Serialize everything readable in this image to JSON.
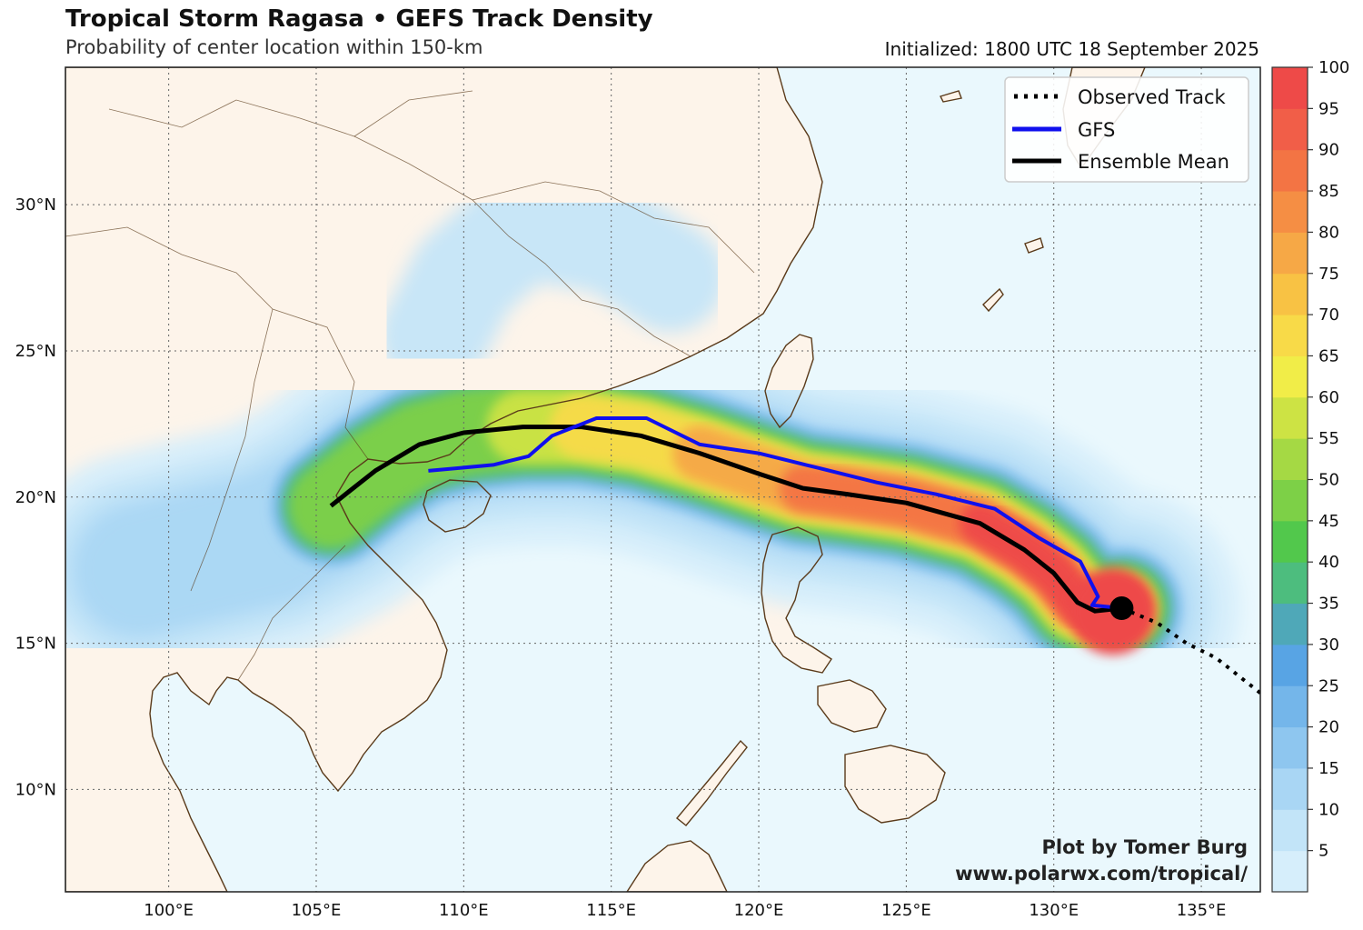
{
  "header": {
    "title": "Tropical Storm Ragasa • GEFS Track Density",
    "subtitle": "Probability of center location within 150-km",
    "initialized": "Initialized: 1800 UTC 18 September 2025"
  },
  "map": {
    "lon_range": [
      96.5,
      137.0
    ],
    "lat_range": [
      6.5,
      34.7
    ],
    "lon_ticks": [
      {
        "value": 100,
        "label": "100°E"
      },
      {
        "value": 105,
        "label": "105°E"
      },
      {
        "value": 110,
        "label": "110°E"
      },
      {
        "value": 115,
        "label": "115°E"
      },
      {
        "value": 120,
        "label": "120°E"
      },
      {
        "value": 125,
        "label": "125°E"
      },
      {
        "value": 130,
        "label": "130°E"
      },
      {
        "value": 135,
        "label": "135°E"
      }
    ],
    "lat_ticks": [
      {
        "value": 10,
        "label": "10°N"
      },
      {
        "value": 15,
        "label": "15°N"
      },
      {
        "value": 20,
        "label": "20°N"
      },
      {
        "value": 25,
        "label": "25°N"
      },
      {
        "value": 30,
        "label": "30°N"
      }
    ],
    "colors": {
      "ocean": "#eaf8fd",
      "land": "#fdf4ea",
      "coast": "#5a3a1a",
      "observed": "#000000",
      "gfs": "#1010ee",
      "ensemble_mean": "#000000"
    }
  },
  "legend": {
    "items": [
      {
        "label": "Observed Track",
        "style": "dotted",
        "color": "#000000"
      },
      {
        "label": "GFS",
        "style": "solid",
        "color": "#1010ee"
      },
      {
        "label": "Ensemble Mean",
        "style": "solid",
        "color": "#000000"
      }
    ]
  },
  "colorbar": {
    "ticks": [
      "5",
      "10",
      "15",
      "20",
      "25",
      "30",
      "35",
      "40",
      "45",
      "50",
      "55",
      "60",
      "65",
      "70",
      "75",
      "80",
      "85",
      "90",
      "95",
      "100"
    ],
    "colors": [
      "#d6eefb",
      "#c2e4f8",
      "#a9d6f4",
      "#8ec6ef",
      "#74b6ea",
      "#58a4e4",
      "#4fa8b8",
      "#4dbd7e",
      "#52c84c",
      "#7dd047",
      "#a5d944",
      "#cde344",
      "#f1ed48",
      "#f8da48",
      "#f8c244",
      "#f6a846",
      "#f58e44",
      "#f37444",
      "#f15e48",
      "#ee4a48"
    ]
  },
  "tracks": {
    "observed": [
      [
        137.0,
        13.3
      ],
      [
        135.5,
        14.5
      ],
      [
        134.5,
        15.0
      ],
      [
        133.5,
        15.7
      ],
      [
        132.3,
        16.2
      ]
    ],
    "current_position": [
      132.3,
      16.2
    ],
    "gfs": [
      [
        132.3,
        16.2
      ],
      [
        131.3,
        16.3
      ],
      [
        131.5,
        16.6
      ],
      [
        131.2,
        17.2
      ],
      [
        130.9,
        17.8
      ],
      [
        129.5,
        18.6
      ],
      [
        128.0,
        19.6
      ],
      [
        126.0,
        20.1
      ],
      [
        124.0,
        20.5
      ],
      [
        122.0,
        21.0
      ],
      [
        120.0,
        21.5
      ],
      [
        118.0,
        21.8
      ],
      [
        116.2,
        22.7
      ],
      [
        114.5,
        22.7
      ],
      [
        113.0,
        22.1
      ],
      [
        112.2,
        21.4
      ],
      [
        111.0,
        21.1
      ],
      [
        108.8,
        20.9
      ]
    ],
    "ensemble_mean": [
      [
        132.3,
        16.2
      ],
      [
        131.4,
        16.1
      ],
      [
        130.8,
        16.4
      ],
      [
        130.0,
        17.4
      ],
      [
        129.0,
        18.2
      ],
      [
        127.5,
        19.1
      ],
      [
        125.0,
        19.8
      ],
      [
        123.0,
        20.1
      ],
      [
        121.5,
        20.3
      ],
      [
        120.0,
        20.8
      ],
      [
        118.0,
        21.5
      ],
      [
        116.0,
        22.1
      ],
      [
        114.0,
        22.4
      ],
      [
        112.0,
        22.4
      ],
      [
        110.0,
        22.2
      ],
      [
        108.5,
        21.8
      ],
      [
        107.0,
        20.9
      ],
      [
        105.5,
        19.7
      ]
    ]
  },
  "credit": {
    "line1": "Plot by Tomer Burg",
    "line2": "www.polarwx.com/tropical/"
  }
}
